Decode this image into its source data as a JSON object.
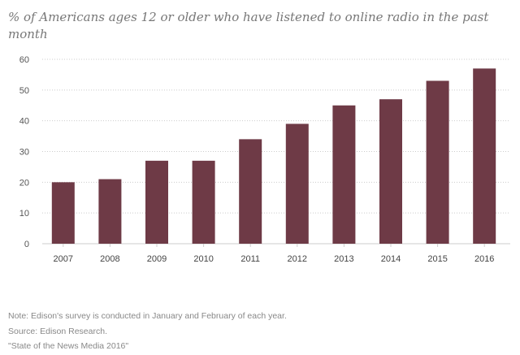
{
  "chart_data": {
    "type": "bar",
    "title": "% of Americans ages 12 or older who have listened to online radio in the past month",
    "categories": [
      "2007",
      "2008",
      "2009",
      "2010",
      "2011",
      "2012",
      "2013",
      "2014",
      "2015",
      "2016"
    ],
    "values": [
      20,
      21,
      27,
      27,
      34,
      39,
      45,
      47,
      53,
      57
    ],
    "ylim": [
      0,
      60
    ],
    "yticks": [
      "0",
      "10",
      "20",
      "30",
      "40",
      "50",
      "60"
    ],
    "xlabel": "",
    "ylabel": "",
    "grid": true,
    "bar_color": "#6e3a46",
    "grid_color": "#cccccc"
  },
  "notes": {
    "note": "Note: Edison's survey is conducted in January and February of each year.",
    "source": "Source: Edison Research.",
    "report": "\"State of the News Media 2016\""
  }
}
